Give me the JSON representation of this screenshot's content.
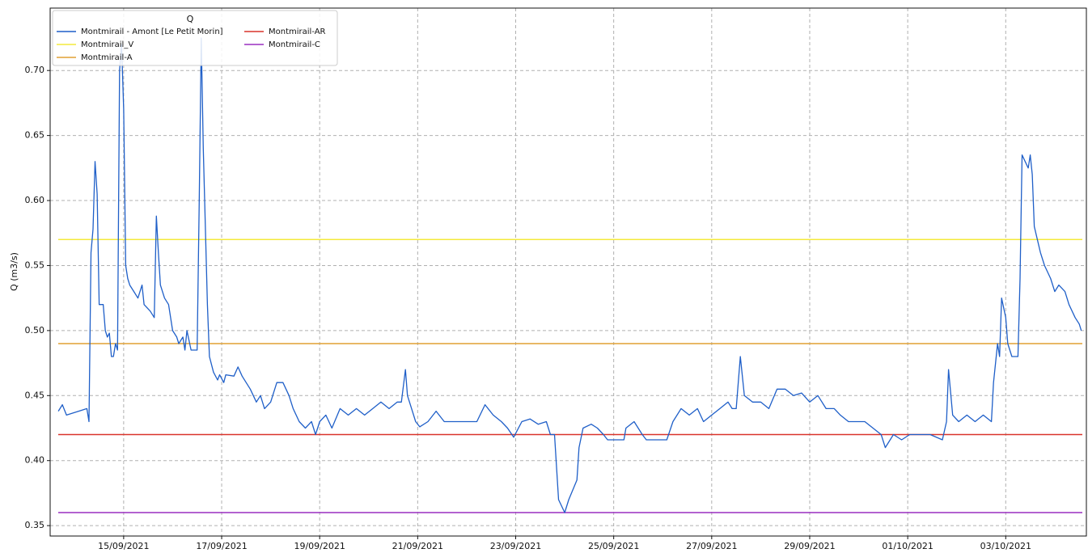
{
  "chart_data": {
    "type": "line",
    "ylabel": "Q (m3/s)",
    "legend_title": "Q",
    "legend_loc": "upper left",
    "grid": true,
    "xlim": [
      "2021-09-13T12:00",
      "2021-10-04T15:30"
    ],
    "xticks": [
      {
        "value": "2021-09-15T00:00",
        "label": "15/09/2021"
      },
      {
        "value": "2021-09-17T00:00",
        "label": "17/09/2021"
      },
      {
        "value": "2021-09-19T00:00",
        "label": "19/09/2021"
      },
      {
        "value": "2021-09-21T00:00",
        "label": "21/09/2021"
      },
      {
        "value": "2021-09-23T00:00",
        "label": "23/09/2021"
      },
      {
        "value": "2021-09-25T00:00",
        "label": "25/09/2021"
      },
      {
        "value": "2021-09-27T00:00",
        "label": "27/09/2021"
      },
      {
        "value": "2021-09-29T00:00",
        "label": "29/09/2021"
      },
      {
        "value": "2021-10-01T00:00",
        "label": "01/10/2021"
      },
      {
        "value": "2021-10-03T00:00",
        "label": "03/10/2021"
      }
    ],
    "ylim": [
      0.342,
      0.748
    ],
    "yticks": [
      0.35,
      {
        "value": 0.4,
        "label": "0.40"
      },
      0.45,
      {
        "value": 0.5,
        "label": "0.50"
      },
      0.55,
      {
        "value": 0.6,
        "label": "0.60"
      },
      0.65,
      {
        "value": 0.7,
        "label": "0.70"
      }
    ],
    "series": [
      {
        "name": "Montmirail - Amont [Le Petit Morin]",
        "color": "#1f5fc8",
        "x": [
          "2021-09-13T16:00",
          "2021-09-13T18:00",
          "2021-09-13T20:00",
          "2021-09-14T06:00",
          "2021-09-14T07:00",
          "2021-09-14T08:00",
          "2021-09-14T09:00",
          "2021-09-14T10:00",
          "2021-09-14T11:00",
          "2021-09-14T12:00",
          "2021-09-14T14:00",
          "2021-09-14T15:00",
          "2021-09-14T16:00",
          "2021-09-14T17:00",
          "2021-09-14T18:00",
          "2021-09-14T19:00",
          "2021-09-14T20:00",
          "2021-09-14T21:00",
          "2021-09-14T22:00",
          "2021-09-14T23:00",
          "2021-09-15T00:00",
          "2021-09-15T01:00",
          "2021-09-15T02:00",
          "2021-09-15T03:00",
          "2021-09-15T05:00",
          "2021-09-15T07:00",
          "2021-09-15T09:00",
          "2021-09-15T10:00",
          "2021-09-15T13:00",
          "2021-09-15T15:00",
          "2021-09-15T16:00",
          "2021-09-15T17:00",
          "2021-09-15T18:00",
          "2021-09-15T20:00",
          "2021-09-15T22:00",
          "2021-09-16T00:00",
          "2021-09-16T02:00",
          "2021-09-16T03:00",
          "2021-09-16T05:00",
          "2021-09-16T06:00",
          "2021-09-16T07:00",
          "2021-09-16T09:00",
          "2021-09-16T12:00",
          "2021-09-16T13:00",
          "2021-09-16T14:00",
          "2021-09-16T15:00",
          "2021-09-16T17:00",
          "2021-09-16T18:00",
          "2021-09-16T20:00",
          "2021-09-16T22:00",
          "2021-09-16T23:00",
          "2021-09-17T01:00",
          "2021-09-17T02:00",
          "2021-09-17T06:00",
          "2021-09-17T08:00",
          "2021-09-17T10:00",
          "2021-09-17T12:00",
          "2021-09-17T14:00",
          "2021-09-17T17:00",
          "2021-09-17T19:00",
          "2021-09-17T21:00",
          "2021-09-18T00:00",
          "2021-09-18T03:00",
          "2021-09-18T06:00",
          "2021-09-18T09:00",
          "2021-09-18T11:00",
          "2021-09-18T14:00",
          "2021-09-18T17:00",
          "2021-09-18T20:00",
          "2021-09-18T22:00",
          "2021-09-19T00:00",
          "2021-09-19T03:00",
          "2021-09-19T06:00",
          "2021-09-19T10:00",
          "2021-09-19T14:00",
          "2021-09-19T18:00",
          "2021-09-19T22:00",
          "2021-09-20T02:00",
          "2021-09-20T06:00",
          "2021-09-20T10:00",
          "2021-09-20T14:00",
          "2021-09-20T16:00",
          "2021-09-20T18:00",
          "2021-09-20T19:00",
          "2021-09-20T21:00",
          "2021-09-20T23:00",
          "2021-09-21T01:00",
          "2021-09-21T05:00",
          "2021-09-21T09:00",
          "2021-09-21T13:00",
          "2021-09-21T15:00",
          "2021-09-22T05:00",
          "2021-09-22T09:00",
          "2021-09-22T13:00",
          "2021-09-22T17:00",
          "2021-09-22T20:00",
          "2021-09-22T23:00",
          "2021-09-23T03:00",
          "2021-09-23T07:00",
          "2021-09-23T11:00",
          "2021-09-23T15:00",
          "2021-09-23T17:00",
          "2021-09-23T19:00",
          "2021-09-23T21:00",
          "2021-09-24T00:00",
          "2021-09-24T02:00",
          "2021-09-24T06:00",
          "2021-09-24T07:00",
          "2021-09-24T09:00",
          "2021-09-24T13:00",
          "2021-09-24T16:00",
          "2021-09-24T19:00",
          "2021-09-24T21:00",
          "2021-09-25T05:00",
          "2021-09-25T06:00",
          "2021-09-25T10:00",
          "2021-09-25T14:00",
          "2021-09-25T16:00",
          "2021-09-26T02:00",
          "2021-09-26T05:00",
          "2021-09-26T09:00",
          "2021-09-26T13:00",
          "2021-09-26T17:00",
          "2021-09-26T20:00",
          "2021-09-27T00:00",
          "2021-09-27T04:00",
          "2021-09-27T08:00",
          "2021-09-27T10:00",
          "2021-09-27T12:00",
          "2021-09-27T14:00",
          "2021-09-27T16:00",
          "2021-09-27T20:00",
          "2021-09-28T00:00",
          "2021-09-28T04:00",
          "2021-09-28T08:00",
          "2021-09-28T12:00",
          "2021-09-28T16:00",
          "2021-09-28T20:00",
          "2021-09-29T00:00",
          "2021-09-29T04:00",
          "2021-09-29T08:00",
          "2021-09-29T12:00",
          "2021-09-29T15:00",
          "2021-09-29T19:00",
          "2021-09-29T23:00",
          "2021-09-30T03:00",
          "2021-09-30T07:00",
          "2021-09-30T11:00",
          "2021-09-30T13:00",
          "2021-09-30T17:00",
          "2021-09-30T21:00",
          "2021-10-01T01:00",
          "2021-10-01T05:00",
          "2021-10-01T11:00",
          "2021-10-01T17:00",
          "2021-10-01T19:00",
          "2021-10-01T20:00",
          "2021-10-01T22:00",
          "2021-10-02T01:00",
          "2021-10-02T05:00",
          "2021-10-02T09:00",
          "2021-10-02T13:00",
          "2021-10-02T17:00",
          "2021-10-02T18:00",
          "2021-10-02T20:00",
          "2021-10-02T21:00",
          "2021-10-02T22:00",
          "2021-10-03T00:00",
          "2021-10-03T01:00",
          "2021-10-03T03:00",
          "2021-10-03T06:00",
          "2021-10-03T07:00",
          "2021-10-03T08:00",
          "2021-10-03T11:00",
          "2021-10-03T12:00",
          "2021-10-03T13:00",
          "2021-10-03T14:00",
          "2021-10-03T17:00",
          "2021-10-03T19:00",
          "2021-10-03T22:00",
          "2021-10-04T00:00",
          "2021-10-04T02:00",
          "2021-10-04T05:00",
          "2021-10-04T07:00",
          "2021-10-04T10:00",
          "2021-10-04T12:00",
          "2021-10-04T13:00"
        ],
        "values": [
          0.438,
          0.443,
          0.435,
          0.44,
          0.43,
          0.56,
          0.578,
          0.63,
          0.605,
          0.52,
          0.52,
          0.5,
          0.495,
          0.498,
          0.48,
          0.48,
          0.49,
          0.485,
          0.7,
          0.72,
          0.67,
          0.55,
          0.54,
          0.535,
          0.53,
          0.525,
          0.535,
          0.52,
          0.515,
          0.51,
          0.588,
          0.56,
          0.535,
          0.525,
          0.52,
          0.5,
          0.495,
          0.49,
          0.495,
          0.485,
          0.5,
          0.485,
          0.485,
          0.6,
          0.725,
          0.64,
          0.52,
          0.48,
          0.468,
          0.462,
          0.466,
          0.46,
          0.466,
          0.465,
          0.472,
          0.465,
          0.46,
          0.455,
          0.445,
          0.45,
          0.44,
          0.445,
          0.46,
          0.46,
          0.45,
          0.44,
          0.43,
          0.425,
          0.43,
          0.42,
          0.43,
          0.435,
          0.425,
          0.44,
          0.435,
          0.44,
          0.435,
          0.44,
          0.445,
          0.44,
          0.445,
          0.445,
          0.47,
          0.45,
          0.44,
          0.43,
          0.426,
          0.43,
          0.438,
          0.43,
          0.43,
          0.43,
          0.443,
          0.435,
          0.43,
          0.425,
          0.418,
          0.43,
          0.432,
          0.428,
          0.43,
          0.42,
          0.42,
          0.37,
          0.36,
          0.37,
          0.385,
          0.41,
          0.425,
          0.428,
          0.425,
          0.42,
          0.416,
          0.416,
          0.425,
          0.43,
          0.42,
          0.416,
          0.416,
          0.43,
          0.44,
          0.435,
          0.44,
          0.43,
          0.435,
          0.44,
          0.445,
          0.44,
          0.44,
          0.48,
          0.45,
          0.445,
          0.445,
          0.44,
          0.455,
          0.455,
          0.45,
          0.452,
          0.445,
          0.45,
          0.44,
          0.44,
          0.435,
          0.43,
          0.43,
          0.43,
          0.425,
          0.42,
          0.41,
          0.42,
          0.416,
          0.42,
          0.42,
          0.42,
          0.416,
          0.43,
          0.47,
          0.435,
          0.43,
          0.435,
          0.43,
          0.435,
          0.43,
          0.46,
          0.49,
          0.48,
          0.525,
          0.51,
          0.49,
          0.48,
          0.48,
          0.54,
          0.635,
          0.625,
          0.635,
          0.62,
          0.58,
          0.56,
          0.55,
          0.54,
          0.53,
          0.535,
          0.53,
          0.52,
          0.51,
          0.505,
          0.5
        ]
      }
    ],
    "hlines": [
      {
        "name": "Montmirail_V",
        "color": "#f4ea3c",
        "value": 0.57
      },
      {
        "name": "Montmirail-A",
        "color": "#e0a034",
        "value": 0.49
      },
      {
        "name": "Montmirail-AR",
        "color": "#d9342b",
        "value": 0.42
      },
      {
        "name": "Montmirail-C",
        "color": "#9a2fc0",
        "value": 0.36
      }
    ]
  }
}
